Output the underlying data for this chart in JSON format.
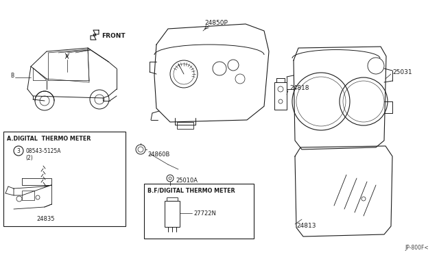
{
  "bg_color": "#ffffff",
  "line_color": "#1a1a1a",
  "fig_width": 6.4,
  "fig_height": 3.72,
  "dpi": 100,
  "watermark": "JP-800F<",
  "parts": {
    "front_label": "FRONT",
    "part_24850P": "24850P",
    "part_24818": "24818",
    "part_25031": "25031",
    "part_24813": "24813",
    "part_24860B": "24860B",
    "part_25010A": "25010A",
    "part_24835": "24835",
    "part_27722N": "27722N",
    "part_08543": "08543-5125A",
    "part_08543_qty": "(2)",
    "box_a_label": "A.DIGITAL  THERMO METER",
    "box_b_label": "B.F/DIGITAL THERMO METER",
    "circle_s": "3"
  }
}
